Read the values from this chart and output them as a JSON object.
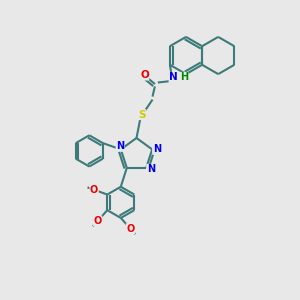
{
  "background_color": "#e8e8e8",
  "bond_color": "#3d7a7a",
  "bond_width": 1.5,
  "atom_colors": {
    "N": "#0000ee",
    "O": "#ee0000",
    "S": "#cccc00",
    "H": "#008800",
    "C": "#3d7a7a"
  },
  "font_size": 7.0,
  "figsize": [
    3.0,
    3.0
  ],
  "dpi": 100
}
